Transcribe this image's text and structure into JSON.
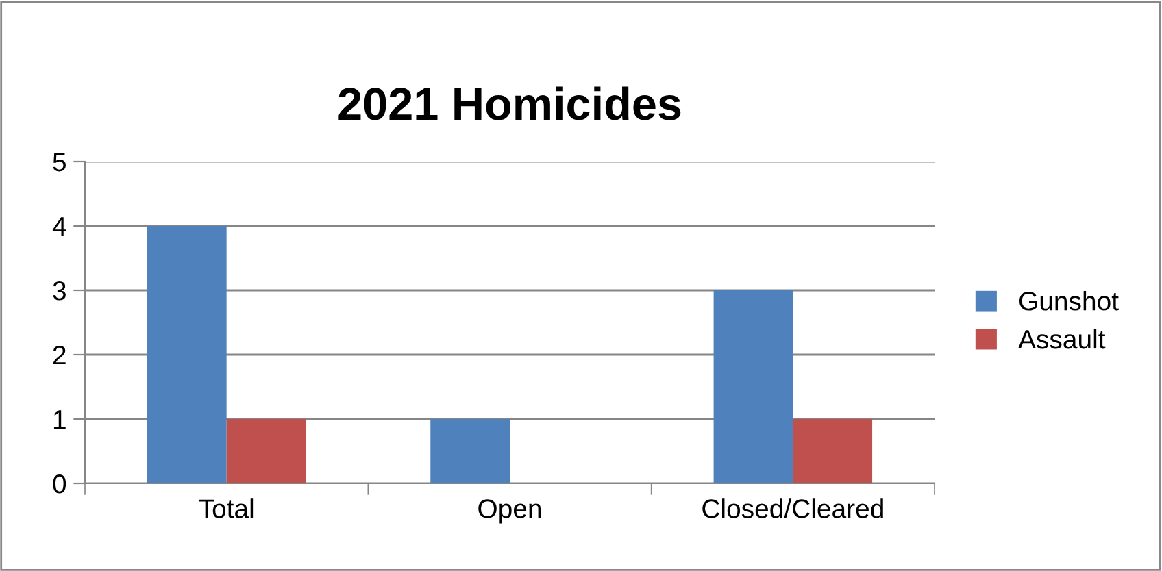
{
  "chart_data": {
    "type": "bar",
    "title": "2021 Homicides",
    "categories": [
      "Total",
      "Open",
      "Closed/Cleared"
    ],
    "series": [
      {
        "name": "Gunshot",
        "color": "#4f81bd",
        "values": [
          4,
          1,
          3
        ]
      },
      {
        "name": "Assault",
        "color": "#c0504d",
        "values": [
          1,
          0,
          1
        ]
      }
    ],
    "ylim": [
      0,
      5
    ],
    "yticks": [
      0,
      1,
      2,
      3,
      4,
      5
    ],
    "grid": "y",
    "legend": "right"
  }
}
